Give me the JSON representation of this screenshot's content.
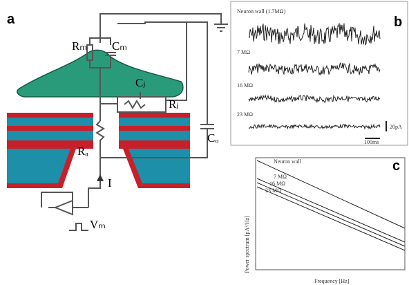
{
  "panel_a": {
    "label": "a",
    "components": {
      "rm": "Rₘ",
      "cm": "Cₘ",
      "cj": "Cⱼ",
      "rj": "Rⱼ",
      "ra": "Rₐ",
      "co": "Cₒ",
      "current": "I",
      "vm": "Vₘ"
    }
  },
  "panel_b": {
    "label": "b",
    "traces": [
      "Neuron wall (1.7MΩ)",
      "7 MΩ",
      "16 MΩ",
      "23 MΩ"
    ],
    "scale_y": "20pA",
    "scale_x": "100ms"
  },
  "panel_c": {
    "label": "c",
    "y_label": "Power spectrum [pA²/Hz]",
    "x_label": "Frequency [Hz]",
    "lines": [
      "Neuron wall",
      "7 MΩ",
      "16 MΩ",
      "23 MΩ"
    ]
  }
}
